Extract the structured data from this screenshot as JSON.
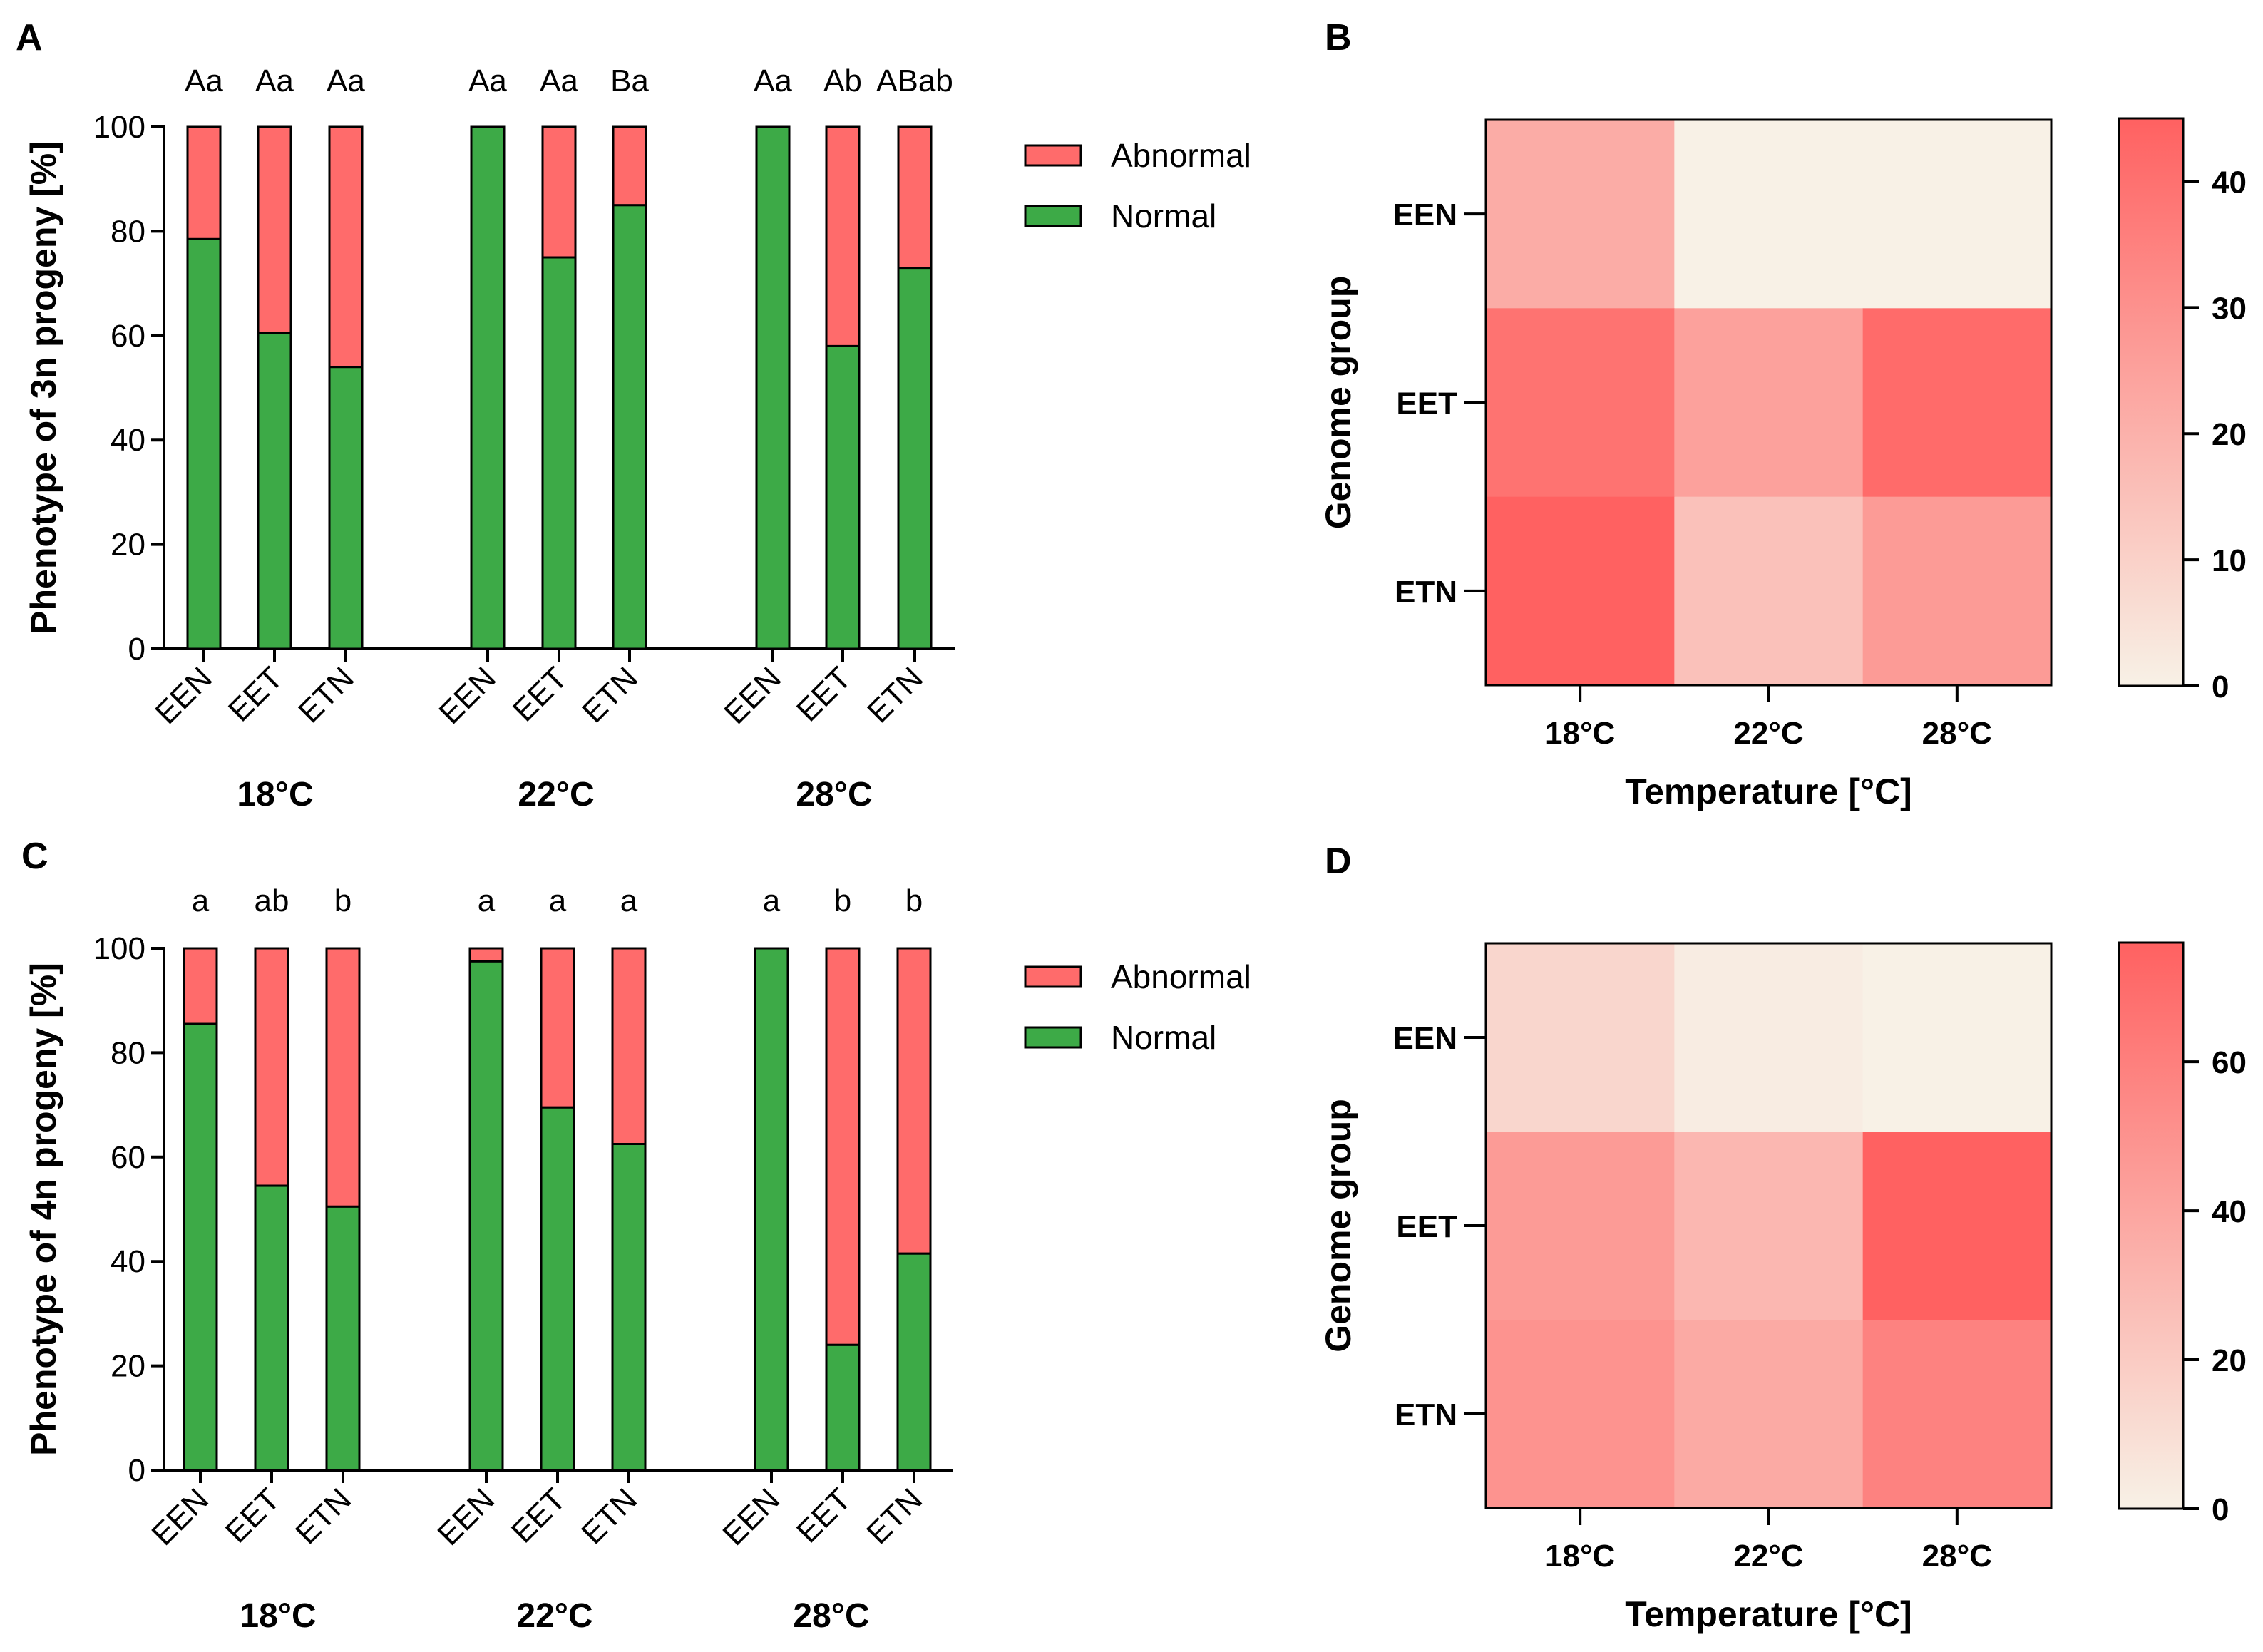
{
  "colors": {
    "normal": "#3DAA47",
    "abnormal": "#FF6B6B",
    "heat_low": "#F8F1E6",
    "heat_high": "#FF6161"
  },
  "legend": {
    "abnormal": "Abnormal",
    "normal": "Normal"
  },
  "chart_data": [
    {
      "panel": "A",
      "type": "bar",
      "stacked": true,
      "ylabel": "Phenotype of 3n progeny [%]",
      "ylim": [
        0,
        100
      ],
      "yticks": [
        "0",
        "20",
        "40",
        "60",
        "80",
        "100"
      ],
      "groups": [
        "18°C",
        "22°C",
        "28°C"
      ],
      "categories": [
        "EEN",
        "EET",
        "ETN"
      ],
      "series": [
        {
          "name": "Normal",
          "values": [
            [
              78.5,
              60.5,
              54.0
            ],
            [
              100,
              75.0,
              85.0
            ],
            [
              100,
              58.0,
              73.0
            ]
          ]
        },
        {
          "name": "Abnormal",
          "values": [
            [
              21.5,
              39.5,
              46.0
            ],
            [
              0,
              25.0,
              15.0
            ],
            [
              0,
              42.0,
              27.0
            ]
          ]
        }
      ],
      "annotations": [
        [
          "Aa",
          "Aa",
          "Aa"
        ],
        [
          "Aa",
          "Aa",
          "Ba"
        ],
        [
          "Aa",
          "Ab",
          "ABab"
        ]
      ]
    },
    {
      "panel": "B",
      "type": "heatmap",
      "xlabel": "Temperature [°C]",
      "ylabel": "Genome group",
      "x": [
        "18°C",
        "22°C",
        "28°C"
      ],
      "y": [
        "EEN",
        "EET",
        "ETN"
      ],
      "values": [
        [
          21.5,
          0,
          0
        ],
        [
          39.5,
          25,
          42
        ],
        [
          46,
          15,
          27
        ]
      ],
      "colorbar": {
        "min": 0,
        "max": 45,
        "ticks": [
          "0",
          "10",
          "20",
          "30",
          "40"
        ],
        "tick_values": [
          0,
          10,
          20,
          30,
          40
        ]
      }
    },
    {
      "panel": "C",
      "type": "bar",
      "stacked": true,
      "ylabel": "Phenotype of 4n progeny [%]",
      "ylim": [
        0,
        100
      ],
      "yticks": [
        "0",
        "20",
        "40",
        "60",
        "80",
        "100"
      ],
      "groups": [
        "18°C",
        "22°C",
        "28°C"
      ],
      "categories": [
        "EEN",
        "EET",
        "ETN"
      ],
      "series": [
        {
          "name": "Normal",
          "values": [
            [
              85.5,
              54.5,
              50.5
            ],
            [
              97.5,
              69.5,
              62.5
            ],
            [
              100,
              24.0,
              41.5
            ]
          ]
        },
        {
          "name": "Abnormal",
          "values": [
            [
              14.5,
              45.5,
              49.5
            ],
            [
              2.5,
              30.5,
              37.5
            ],
            [
              0,
              76.0,
              58.5
            ]
          ]
        }
      ],
      "annotations": [
        [
          "a",
          "ab",
          "b"
        ],
        [
          "a",
          "a",
          "a"
        ],
        [
          "a",
          "b",
          "b"
        ]
      ]
    },
    {
      "panel": "D",
      "type": "heatmap",
      "xlabel": "Temperature [°C]",
      "ylabel": "Genome group",
      "x": [
        "18°C",
        "22°C",
        "28°C"
      ],
      "y": [
        "EEN",
        "EET",
        "ETN"
      ],
      "values": [
        [
          14.5,
          2.5,
          0
        ],
        [
          45.5,
          30.5,
          76
        ],
        [
          49.5,
          37.5,
          58.5
        ]
      ],
      "colorbar": {
        "min": 0,
        "max": 76,
        "ticks": [
          "0",
          "20",
          "40",
          "60"
        ],
        "tick_values": [
          0,
          20,
          40,
          60
        ]
      }
    }
  ]
}
